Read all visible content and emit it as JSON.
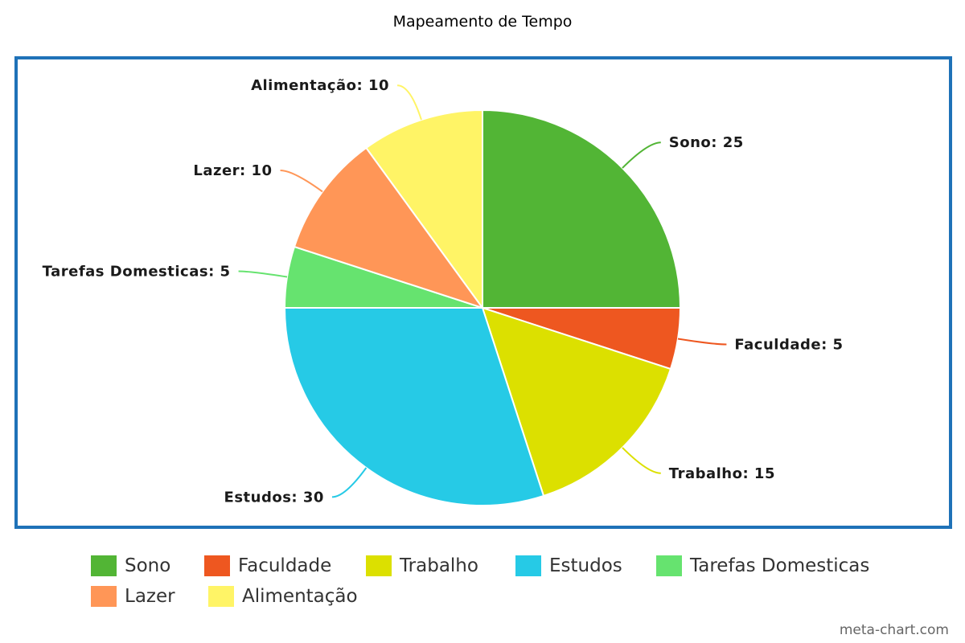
{
  "chart_data": {
    "type": "pie",
    "title": "Mapeamento de Tempo",
    "categories": [
      "Sono",
      "Faculdade",
      "Trabalho",
      "Estudos",
      "Tarefas Domesticas",
      "Lazer",
      "Alimentação"
    ],
    "values": [
      25,
      5,
      15,
      30,
      5,
      10,
      10
    ],
    "colors": [
      "#52b535",
      "#ee5720",
      "#dce000",
      "#26cae6",
      "#66e36f",
      "#ff9657",
      "#fff466"
    ],
    "slice_labels": [
      "Sono: 25",
      "Faculdade: 5",
      "Trabalho: 15",
      "Estudos: 30",
      "Tarefas Domesticas: 5",
      "Lazer: 10",
      "Alimentação: 10"
    ],
    "start_angle": "12 o'clock",
    "direction": "clockwise",
    "legend_position": "bottom"
  },
  "watermark": "meta-chart.com"
}
